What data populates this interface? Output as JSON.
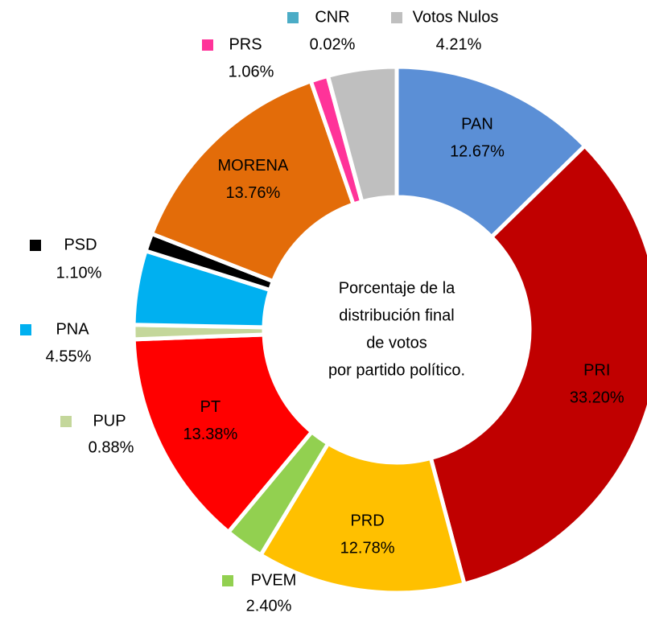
{
  "chart_data": {
    "type": "pie",
    "categories": [
      "PAN",
      "PRI",
      "PRD",
      "PVEM",
      "PT",
      "PUP",
      "PNA",
      "PSD",
      "MORENA",
      "PRS",
      "CNR",
      "Votos Nulos"
    ],
    "values": [
      12.67,
      33.2,
      12.78,
      2.4,
      13.38,
      0.88,
      4.55,
      1.1,
      13.76,
      1.06,
      0.02,
      4.21
    ],
    "value_labels": [
      "12.67%",
      "33.20%",
      "12.78%",
      "2.40%",
      "13.38%",
      "0.88%",
      "4.55%",
      "1.10%",
      "13.76%",
      "1.06%",
      "0.02%",
      "4.21%"
    ],
    "colors": [
      "#5b8fd6",
      "#c00000",
      "#ffc000",
      "#92d050",
      "#ff0000",
      "#c4d79b",
      "#00b0f0",
      "#000000",
      "#e36c09",
      "#ff3399",
      "#4bacc6",
      "#bfbfbf"
    ],
    "center_text": [
      "Porcentaje de la",
      "distribución final",
      "de votos",
      "por partido político."
    ]
  }
}
